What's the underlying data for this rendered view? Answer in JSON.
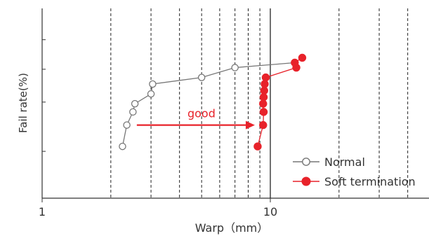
{
  "chart_data": {
    "type": "scatter",
    "xlabel": "Warp（mm）",
    "ylabel": "Fail rate(%)",
    "x_scale": "log",
    "x_ticks": [
      {
        "value": 1,
        "label": "1"
      },
      {
        "value": 10,
        "label": "10"
      }
    ],
    "x_gridlines": [
      2,
      3,
      4,
      5,
      6,
      7,
      8,
      9,
      20,
      30,
      40
    ],
    "reference_line_x": 10,
    "y_tick_positions_cum": [
      0.2,
      0.5,
      0.7,
      0.88
    ],
    "series": [
      {
        "name": "Normal",
        "color": "#777777",
        "marker": "open-circle",
        "points": [
          {
            "x": 2.25,
            "y": 0.23
          },
          {
            "x": 2.35,
            "y": 0.36
          },
          {
            "x": 2.5,
            "y": 0.44
          },
          {
            "x": 2.55,
            "y": 0.49
          },
          {
            "x": 3.0,
            "y": 0.55
          },
          {
            "x": 3.05,
            "y": 0.61
          },
          {
            "x": 5.0,
            "y": 0.65
          },
          {
            "x": 7.0,
            "y": 0.71
          },
          {
            "x": 12.8,
            "y": 0.74
          }
        ]
      },
      {
        "name": "Soft termination",
        "color": "#e8222a",
        "marker": "filled-circle",
        "points": [
          {
            "x": 8.8,
            "y": 0.23
          },
          {
            "x": 9.3,
            "y": 0.36
          },
          {
            "x": 9.35,
            "y": 0.44
          },
          {
            "x": 9.3,
            "y": 0.49
          },
          {
            "x": 9.35,
            "y": 0.53
          },
          {
            "x": 9.4,
            "y": 0.57
          },
          {
            "x": 9.45,
            "y": 0.61
          },
          {
            "x": 9.55,
            "y": 0.65
          },
          {
            "x": 13.0,
            "y": 0.71
          },
          {
            "x": 12.8,
            "y": 0.74
          },
          {
            "x": 13.8,
            "y": 0.77
          }
        ]
      }
    ],
    "annotation": {
      "text": "good",
      "from_x": 2.6,
      "to_x": 8.8,
      "y": 0.36,
      "color": "#e8222a"
    },
    "legend": {
      "position": "bottom-right"
    },
    "grid": true
  }
}
